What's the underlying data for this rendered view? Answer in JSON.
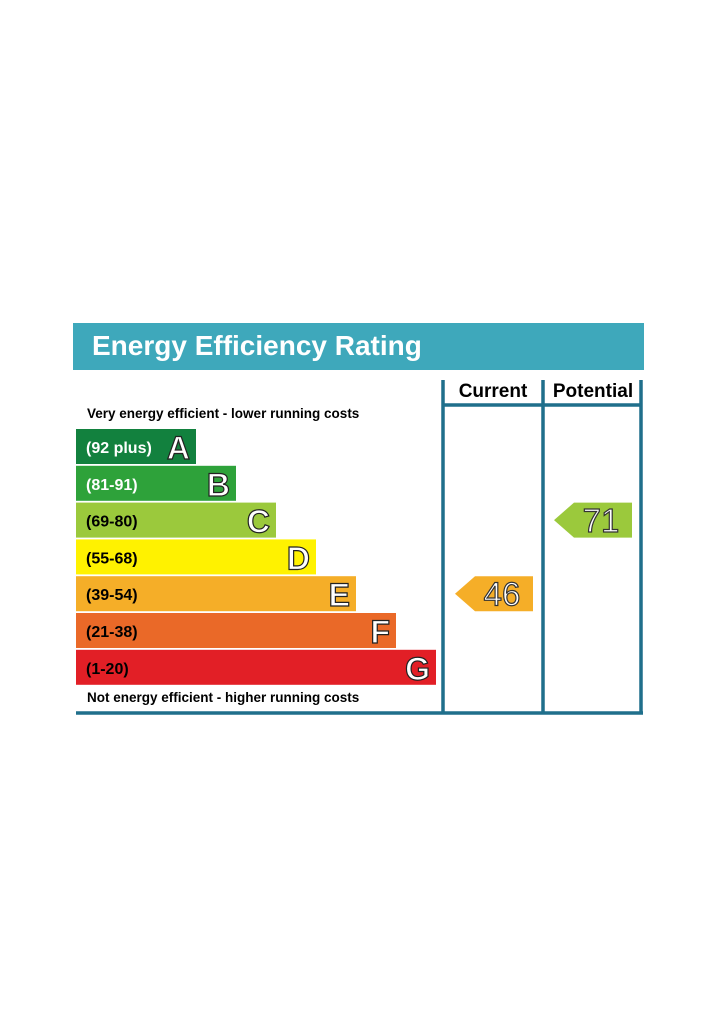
{
  "chart_data": {
    "type": "bar",
    "title": "Energy Efficiency Rating",
    "top_note": "Very energy efficient - lower running costs",
    "bottom_note": "Not energy efficient - higher running costs",
    "columns": [
      "Current",
      "Potential"
    ],
    "bands": [
      {
        "letter": "A",
        "range": "(92 plus)",
        "color": "#12813e",
        "text_color": "#ffffff"
      },
      {
        "letter": "B",
        "range": "(81-91)",
        "color": "#2ea23a",
        "text_color": "#ffffff"
      },
      {
        "letter": "C",
        "range": "(69-80)",
        "color": "#9bc93c",
        "text_color": "#000000"
      },
      {
        "letter": "D",
        "range": "(55-68)",
        "color": "#fff200",
        "text_color": "#000000"
      },
      {
        "letter": "E",
        "range": "(39-54)",
        "color": "#f5ae28",
        "text_color": "#000000"
      },
      {
        "letter": "F",
        "range": "(21-38)",
        "color": "#ea6928",
        "text_color": "#000000"
      },
      {
        "letter": "G",
        "range": "(1-20)",
        "color": "#e21f26",
        "text_color": "#000000"
      }
    ],
    "current": {
      "value": 46,
      "band": "E",
      "color": "#f5ae28"
    },
    "potential": {
      "value": 71,
      "band": "C",
      "color": "#9bc93c"
    },
    "colors": {
      "title_bg": "#3ea8bb",
      "border": "#1f6f8b"
    }
  }
}
